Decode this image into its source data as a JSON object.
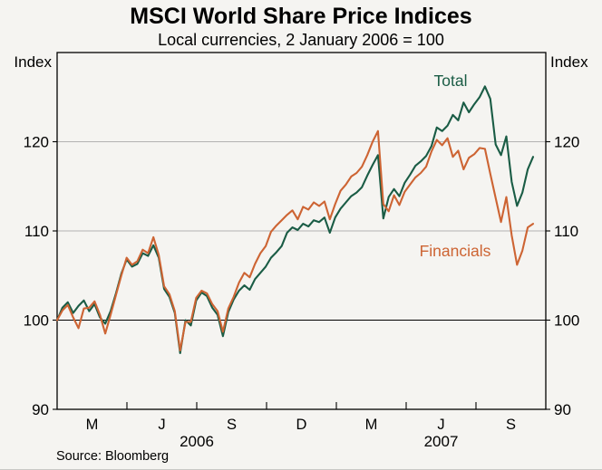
{
  "header": {
    "title": "MSCI World Share Price Indices",
    "subtitle": "Local currencies, 2 January 2006 = 100"
  },
  "axes": {
    "left_label": "Index",
    "right_label": "Index"
  },
  "footer": {
    "source": "Source: Bloomberg"
  },
  "colors": {
    "background": "#f5f4f1",
    "frame": "#000000",
    "gridline": "#9c9c9c",
    "baseline": "#000000",
    "total_line": "#1a5c45",
    "financials_line": "#cd6433"
  },
  "chart_data": {
    "type": "line",
    "title": "MSCI World Share Price Indices",
    "subtitle": "Local currencies, 2 January 2006 = 100",
    "ylabel": "Index",
    "ylim": [
      90,
      130
    ],
    "yticks": [
      90,
      100,
      110,
      120
    ],
    "baseline": 100,
    "grid": "horizontal gridlines at 110 and 120 (gray), reference line at 100 (black)",
    "legend_position": "inline annotations: Total upper-right area, Financials mid-right area",
    "x_axis": {
      "quarter_labels": [
        "M",
        "J",
        "S",
        "D",
        "M",
        "J",
        "S"
      ],
      "year_labels": [
        "2006",
        "2007"
      ],
      "months_total": 21,
      "data_span_fraction": 0.974,
      "note": "axis spans Jan 2006 to end Sep 2007; ticks at quarter boundaries; series sampled weekly, ending mid-Sep 2007"
    },
    "series": [
      {
        "name": "Total",
        "color": "#1a5c45",
        "values": [
          100.0,
          101.4,
          102.0,
          100.8,
          101.6,
          102.2,
          101.0,
          101.8,
          100.3,
          99.6,
          101.0,
          103.0,
          105.2,
          106.8,
          106.0,
          106.3,
          107.5,
          107.2,
          108.4,
          107.0,
          103.5,
          102.6,
          100.8,
          96.3,
          100.0,
          99.4,
          102.2,
          103.1,
          102.7,
          101.4,
          100.6,
          98.2,
          100.9,
          102.3,
          103.3,
          103.9,
          103.4,
          104.6,
          105.3,
          106.0,
          107.0,
          107.6,
          108.3,
          109.8,
          110.4,
          110.1,
          110.8,
          110.5,
          111.2,
          111.0,
          111.5,
          109.8,
          111.5,
          112.5,
          113.2,
          113.9,
          114.3,
          114.9,
          116.2,
          117.4,
          118.5,
          111.4,
          113.8,
          114.7,
          113.9,
          115.4,
          116.3,
          117.3,
          117.8,
          118.4,
          119.5,
          121.6,
          121.2,
          121.8,
          123.0,
          122.4,
          124.4,
          123.3,
          124.2,
          125.0,
          126.2,
          124.8,
          119.7,
          118.5,
          120.6,
          115.5,
          112.8,
          114.3,
          116.9,
          118.3
        ]
      },
      {
        "name": "Financials",
        "color": "#cd6433",
        "values": [
          100.0,
          101.1,
          101.7,
          100.3,
          99.1,
          101.3,
          101.4,
          102.1,
          100.6,
          98.5,
          100.6,
          102.8,
          105.0,
          107.0,
          106.2,
          106.6,
          107.9,
          107.5,
          109.3,
          107.3,
          103.8,
          102.9,
          101.0,
          96.6,
          99.8,
          99.8,
          102.5,
          103.3,
          103.0,
          101.8,
          101.0,
          98.7,
          101.3,
          102.6,
          104.2,
          105.3,
          104.8,
          106.3,
          107.5,
          108.3,
          109.9,
          110.6,
          111.2,
          111.8,
          112.3,
          111.3,
          112.7,
          112.4,
          113.2,
          112.8,
          113.3,
          111.3,
          113.0,
          114.5,
          115.2,
          116.1,
          116.5,
          117.2,
          118.5,
          120.0,
          121.2,
          113.0,
          112.2,
          114.0,
          112.9,
          114.4,
          115.2,
          116.0,
          116.5,
          117.2,
          118.9,
          120.2,
          119.6,
          120.4,
          118.3,
          119.0,
          116.9,
          118.2,
          118.6,
          119.3,
          119.2,
          116.4,
          113.7,
          111.0,
          113.8,
          109.5,
          106.2,
          107.8,
          110.4,
          110.8
        ]
      }
    ]
  }
}
